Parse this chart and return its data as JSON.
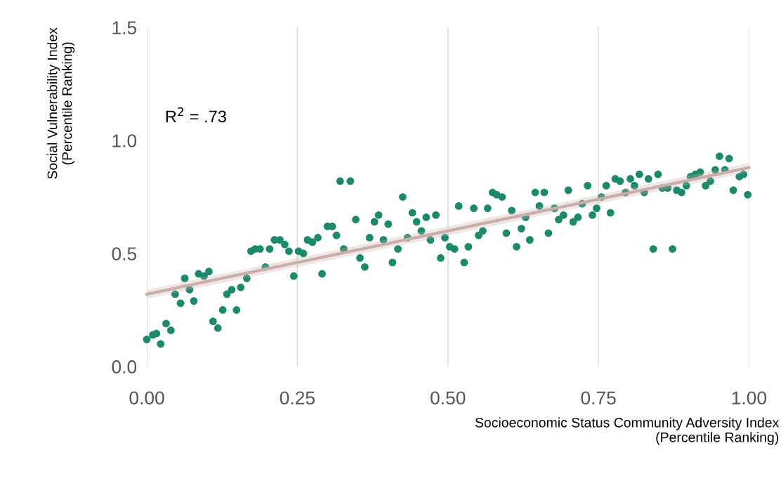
{
  "chart_data": {
    "type": "scatter",
    "xlabel": "Socioeconomic Status Community Adversity Index\n(Percentile Ranking)",
    "ylabel": "Social Vulnerability Index\n(Percentile Ranking)",
    "annotations": [
      "R$^{2}$ = .73"
    ],
    "xlim": [
      0,
      1
    ],
    "xticks": [
      {
        "value": 0,
        "label": "0.00"
      },
      {
        "value": 0.25,
        "label": "0.25"
      },
      {
        "value": 0.5,
        "label": "0.50"
      },
      {
        "value": 0.75,
        "label": "0.75"
      },
      {
        "value": 1,
        "label": "1.00"
      }
    ],
    "ylim": [
      0,
      1.5
    ],
    "yticks": [
      {
        "value": 0,
        "label": "0.0"
      },
      {
        "value": 0.5,
        "label": "0.5"
      },
      {
        "value": 1,
        "label": "1.0"
      },
      {
        "value": 1.5,
        "label": "1.5"
      }
    ],
    "grid": "x",
    "series": [
      {
        "type": "line",
        "color": "#c9aeab",
        "x": [
          0,
          1
        ],
        "values": [
          0.32,
          0.88
        ],
        "lower": [
          0.3,
          0.86
        ],
        "upper": [
          0.34,
          0.9
        ]
      },
      {
        "marker": "circle",
        "color": "#1b8a6b",
        "x": [
          0.0,
          0.01,
          0.016,
          0.023,
          0.032,
          0.04,
          0.047,
          0.056,
          0.063,
          0.071,
          0.078,
          0.086,
          0.095,
          0.103,
          0.11,
          0.118,
          0.126,
          0.133,
          0.141,
          0.149,
          0.156,
          0.166,
          0.173,
          0.18,
          0.188,
          0.197,
          0.204,
          0.212,
          0.221,
          0.229,
          0.236,
          0.244,
          0.252,
          0.26,
          0.267,
          0.275,
          0.284,
          0.291,
          0.3,
          0.308,
          0.315,
          0.321,
          0.338,
          0.327,
          0.347,
          0.354,
          0.362,
          0.37,
          0.378,
          0.385,
          0.393,
          0.401,
          0.408,
          0.417,
          0.425,
          0.433,
          0.441,
          0.448,
          0.456,
          0.464,
          0.471,
          0.48,
          0.488,
          0.495,
          0.503,
          0.511,
          0.518,
          0.527,
          0.534,
          0.543,
          0.551,
          0.558,
          0.566,
          0.574,
          0.581,
          0.59,
          0.597,
          0.606,
          0.614,
          0.622,
          0.629,
          0.636,
          0.645,
          0.652,
          0.66,
          0.667,
          0.677,
          0.684,
          0.692,
          0.7,
          0.708,
          0.716,
          0.723,
          0.732,
          0.74,
          0.747,
          0.755,
          0.763,
          0.77,
          0.778,
          0.786,
          0.795,
          0.803,
          0.81,
          0.818,
          0.826,
          0.833,
          0.841,
          0.849,
          0.856,
          0.865,
          0.873,
          0.88,
          0.888,
          0.896,
          0.903,
          0.911,
          0.919,
          0.928,
          0.936,
          0.944,
          0.951,
          0.96,
          0.967,
          0.974,
          0.984,
          0.991,
          0.998
        ],
        "values": [
          0.12,
          0.14,
          0.146,
          0.1,
          0.19,
          0.16,
          0.32,
          0.28,
          0.39,
          0.34,
          0.29,
          0.41,
          0.4,
          0.42,
          0.2,
          0.17,
          0.25,
          0.32,
          0.34,
          0.25,
          0.35,
          0.39,
          0.51,
          0.52,
          0.52,
          0.44,
          0.52,
          0.56,
          0.56,
          0.54,
          0.51,
          0.4,
          0.51,
          0.5,
          0.56,
          0.55,
          0.57,
          0.41,
          0.62,
          0.62,
          0.58,
          0.82,
          0.82,
          0.52,
          0.65,
          0.48,
          0.44,
          0.57,
          0.64,
          0.67,
          0.56,
          0.63,
          0.46,
          0.52,
          0.75,
          0.57,
          0.68,
          0.64,
          0.6,
          0.66,
          0.56,
          0.67,
          0.48,
          0.57,
          0.53,
          0.52,
          0.71,
          0.46,
          0.53,
          0.7,
          0.58,
          0.6,
          0.7,
          0.77,
          0.76,
          0.75,
          0.59,
          0.69,
          0.53,
          0.61,
          0.66,
          0.56,
          0.77,
          0.71,
          0.77,
          0.59,
          0.7,
          0.65,
          0.67,
          0.78,
          0.64,
          0.66,
          0.72,
          0.8,
          0.67,
          0.7,
          0.75,
          0.8,
          0.68,
          0.83,
          0.82,
          0.77,
          0.83,
          0.8,
          0.85,
          0.77,
          0.83,
          0.52,
          0.85,
          0.79,
          0.79,
          0.52,
          0.78,
          0.77,
          0.8,
          0.84,
          0.85,
          0.86,
          0.8,
          0.82,
          0.87,
          0.93,
          0.87,
          0.92,
          0.78,
          0.84,
          0.85,
          0.76
        ]
      }
    ]
  }
}
